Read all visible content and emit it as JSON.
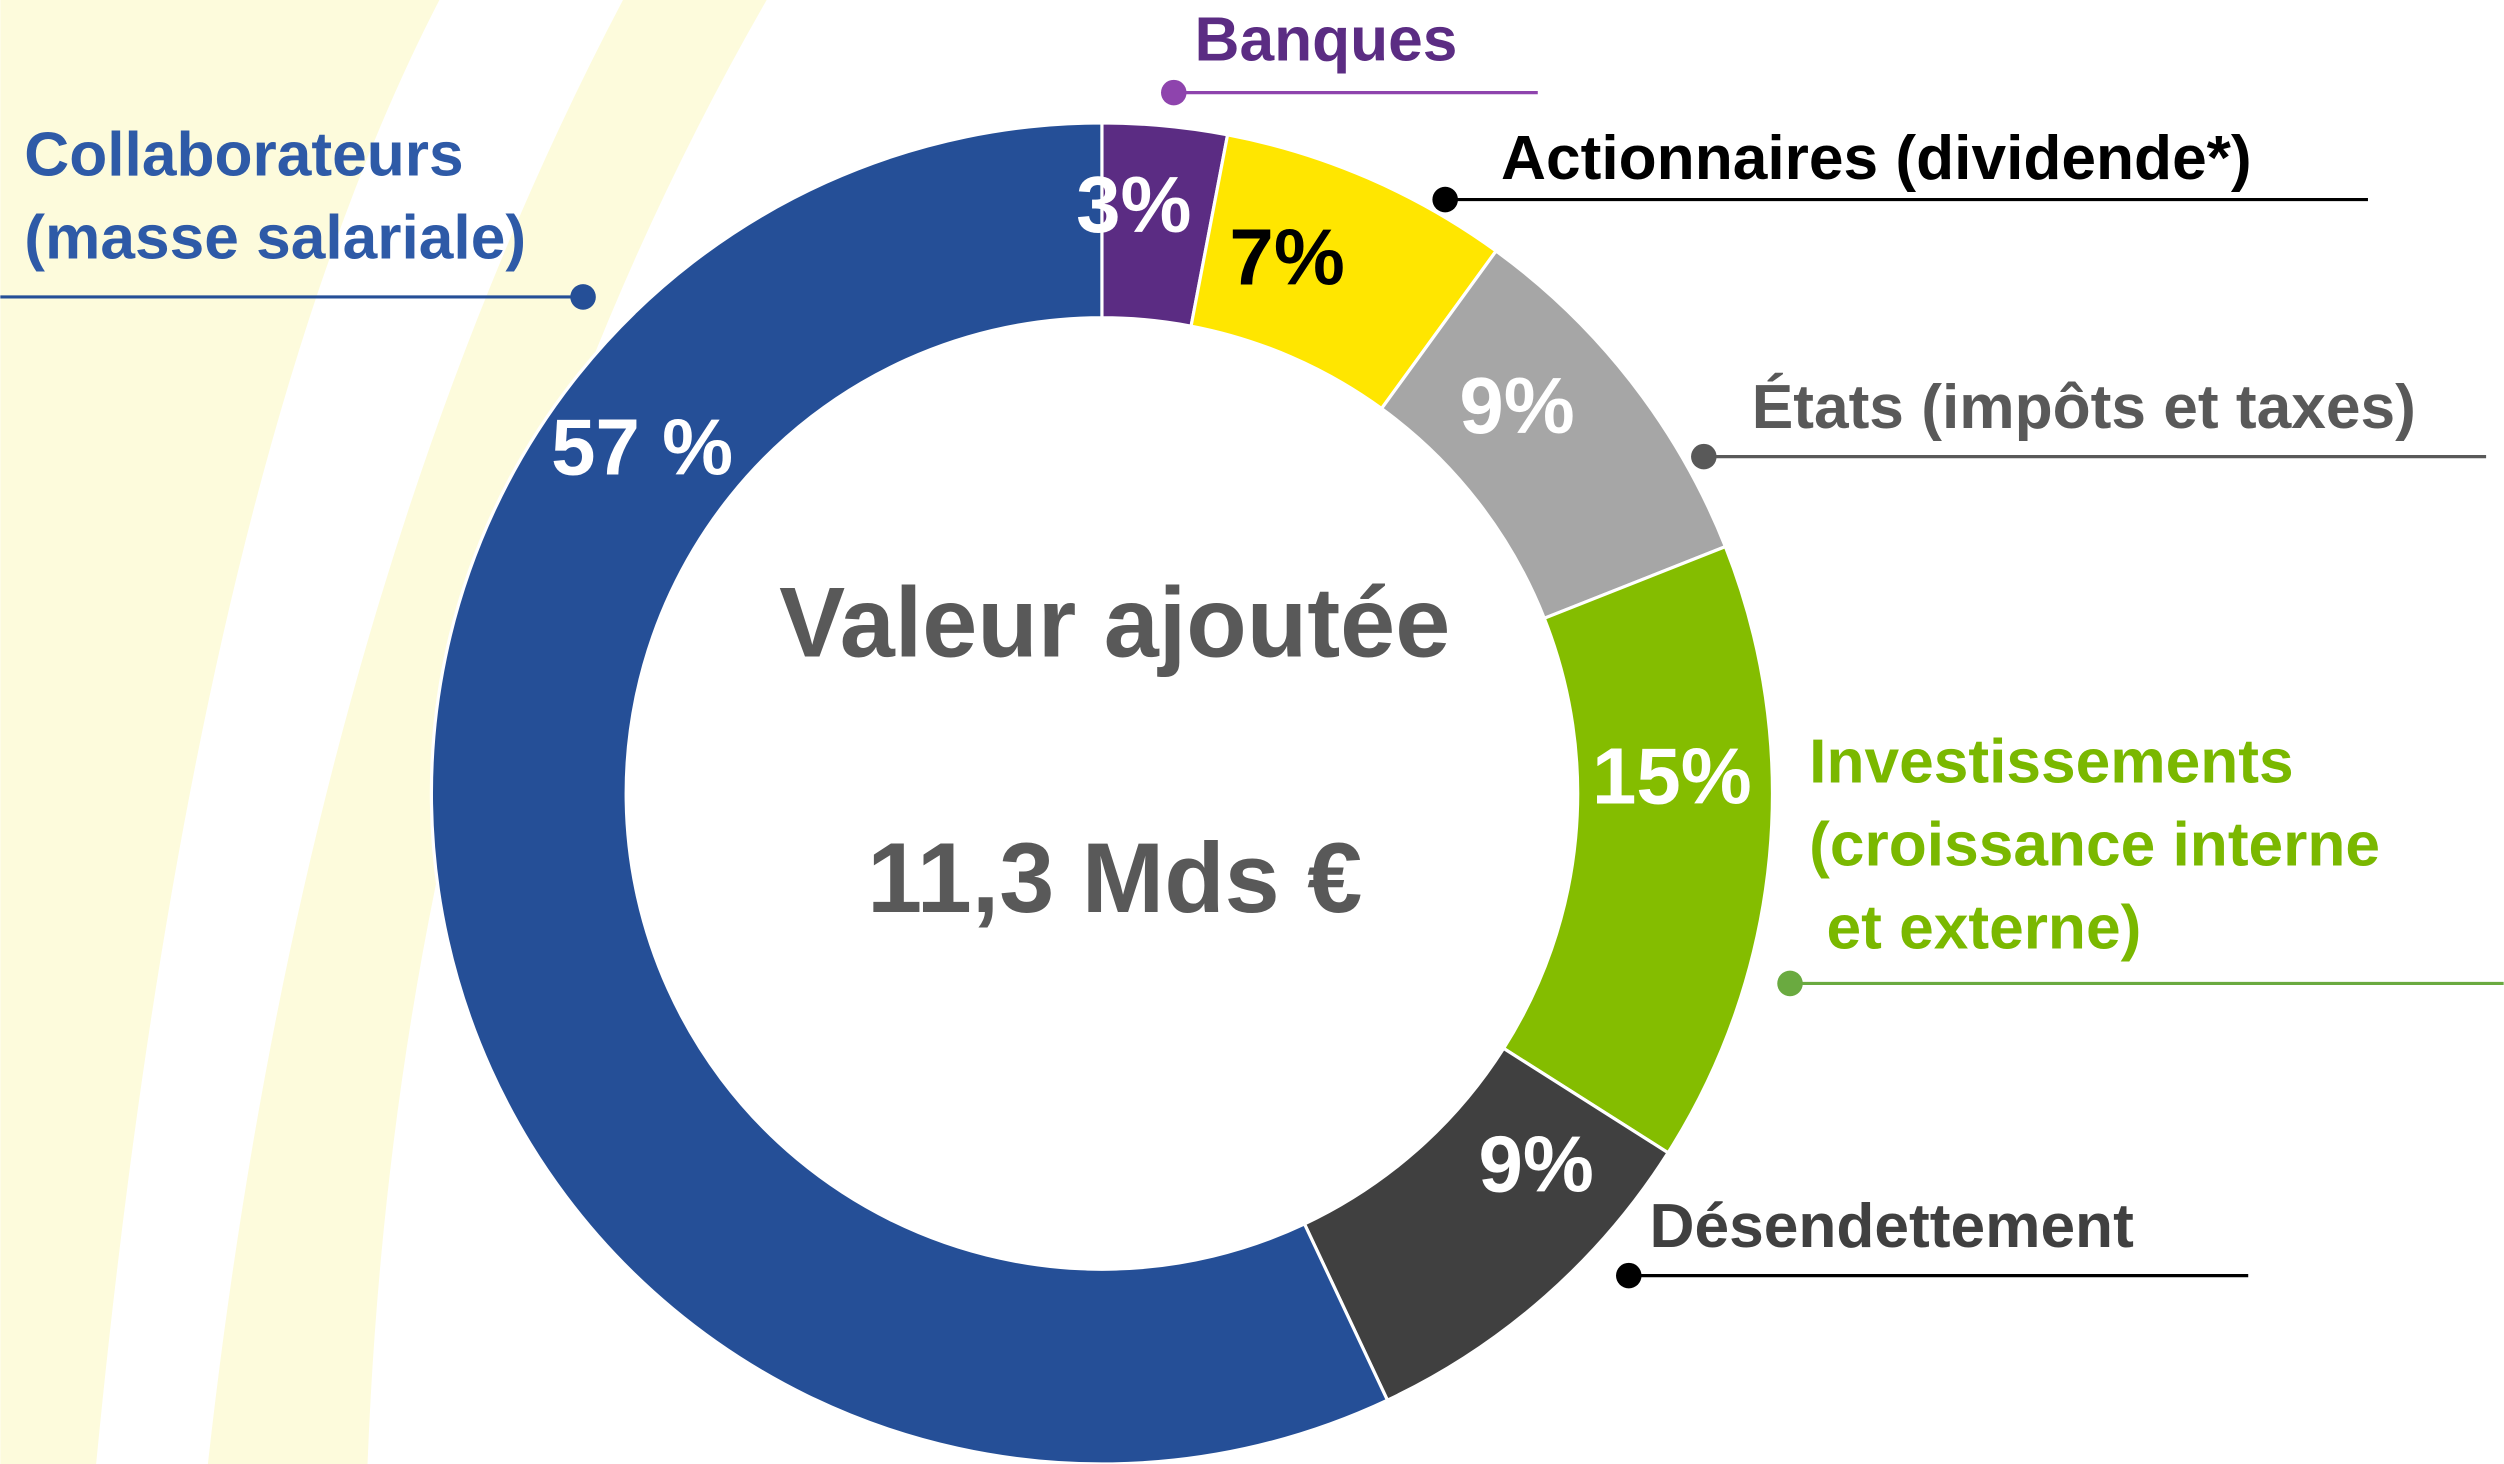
{
  "chart_data": {
    "type": "donut",
    "center_label": "Valeur ajoutée",
    "total_label": "11,3 Mds €",
    "categories": [
      "Banques",
      "Actionnaires (dividende*)",
      "États (impôts et taxes)",
      "Investissements\n(croissance interne\n et externe)",
      "Désendettement",
      "Collaborateurs\n(masse salariale)"
    ],
    "values": [
      3,
      7,
      9,
      15,
      9,
      57
    ],
    "value_labels": [
      "3%",
      "7%",
      "9%",
      "15%",
      "9%",
      "57 %"
    ],
    "colors": [
      "#5b2c83",
      "#ffe600",
      "#a6a6a6",
      "#84bd00",
      "#404040",
      "#254f97"
    ]
  }
}
